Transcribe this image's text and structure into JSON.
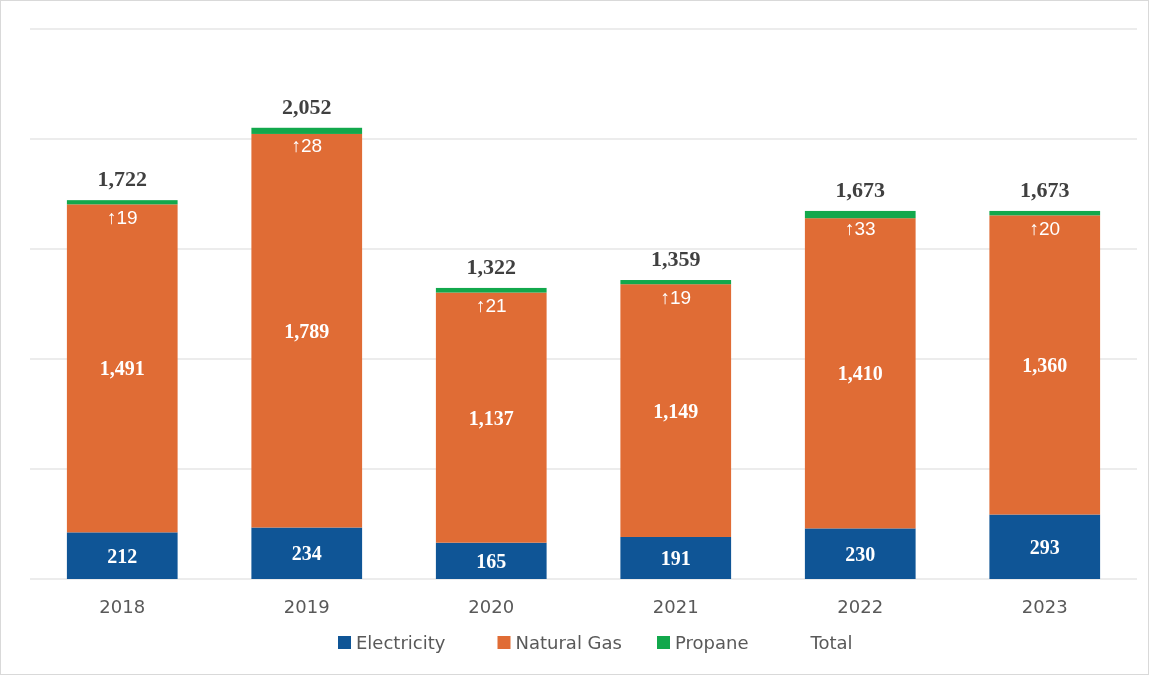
{
  "chart_data": {
    "type": "bar",
    "stacked": true,
    "categories": [
      "2018",
      "2019",
      "2020",
      "2021",
      "2022",
      "2023"
    ],
    "series": [
      {
        "name": "Electricity",
        "color": "#0f5596",
        "values": [
          212,
          234,
          165,
          191,
          230,
          293
        ],
        "value_labels": [
          "212",
          "234",
          "165",
          "191",
          "230",
          "293"
        ]
      },
      {
        "name": "Natural Gas",
        "color": "#e06c35",
        "values": [
          1491,
          1789,
          1137,
          1149,
          1410,
          1360
        ],
        "value_labels": [
          "1,491",
          "1,789",
          "1,137",
          "1,149",
          "1,410",
          "1,360"
        ]
      },
      {
        "name": "Propane",
        "color": "#12a84c",
        "values": [
          19,
          28,
          21,
          19,
          33,
          20
        ],
        "value_labels": [
          "↑19",
          "↑28",
          "↑21",
          "↑19",
          "↑33",
          "↑20"
        ]
      }
    ],
    "totals": [
      "1,722",
      "2,052",
      "1,322",
      "1,359",
      "1,673",
      "1,673"
    ],
    "annotations": [
      "Total"
    ],
    "ylim": [
      0,
      2500
    ],
    "yticks": [
      {
        "value": 0,
        "label": null
      },
      {
        "value": 500,
        "label": null
      },
      {
        "value": 1000,
        "label": null
      },
      {
        "value": 1500,
        "label": null
      },
      {
        "value": 2000,
        "label": null
      },
      {
        "value": 2500,
        "label": null
      }
    ],
    "tick_labels": "x",
    "grid": "y",
    "legend": "bottom"
  }
}
